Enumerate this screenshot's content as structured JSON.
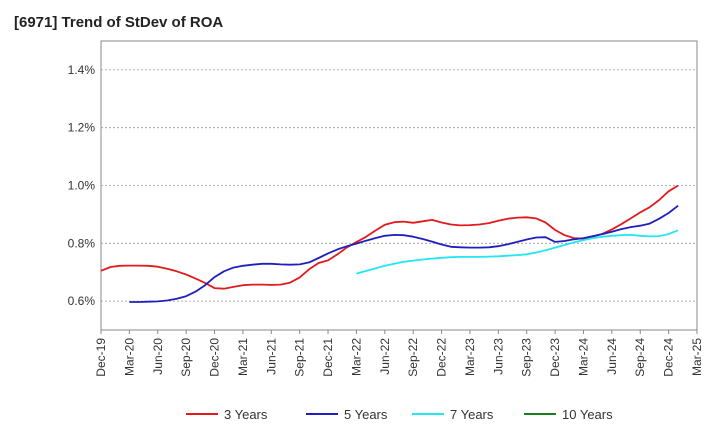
{
  "chart_data": {
    "type": "line",
    "title": "[6971]  Trend of StDev of ROA",
    "xlabel": "",
    "ylabel": "",
    "x_ticks": [
      "Dec-19",
      "Mar-20",
      "Jun-20",
      "Sep-20",
      "Dec-20",
      "Mar-21",
      "Jun-21",
      "Sep-21",
      "Dec-21",
      "Mar-22",
      "Jun-22",
      "Sep-22",
      "Dec-22",
      "Mar-23",
      "Jun-23",
      "Sep-23",
      "Dec-23",
      "Mar-24",
      "Jun-24",
      "Sep-24",
      "Dec-24",
      "Mar-25"
    ],
    "y_ticks": [
      "0.6%",
      "0.8%",
      "1.0%",
      "1.2%",
      "1.4%"
    ],
    "y_tick_values": [
      0.6,
      0.8,
      1.0,
      1.2,
      1.4
    ],
    "ylim": [
      0.5,
      1.5
    ],
    "grid": true,
    "legend_position": "bottom",
    "series": [
      {
        "name": "3 Years",
        "color": "#e31a1c",
        "values": [
          [
            "Dec-19",
            0.705
          ],
          [
            "Jan-20",
            0.718
          ],
          [
            "Feb-20",
            0.722
          ],
          [
            "Mar-20",
            0.723
          ],
          [
            "Apr-20",
            0.723
          ],
          [
            "May-20",
            0.722
          ],
          [
            "Jun-20",
            0.719
          ],
          [
            "Jul-20",
            0.712
          ],
          [
            "Aug-20",
            0.703
          ],
          [
            "Sep-20",
            0.692
          ],
          [
            "Oct-20",
            0.678
          ],
          [
            "Nov-20",
            0.663
          ],
          [
            "Dec-20",
            0.645
          ],
          [
            "Jan-21",
            0.643
          ],
          [
            "Feb-21",
            0.649
          ],
          [
            "Mar-21",
            0.655
          ],
          [
            "Apr-21",
            0.657
          ],
          [
            "May-21",
            0.657
          ],
          [
            "Jun-21",
            0.656
          ],
          [
            "Jul-21",
            0.657
          ],
          [
            "Aug-21",
            0.664
          ],
          [
            "Sep-21",
            0.682
          ],
          [
            "Oct-21",
            0.71
          ],
          [
            "Nov-21",
            0.732
          ],
          [
            "Dec-21",
            0.741
          ],
          [
            "Jan-22",
            0.762
          ],
          [
            "Feb-22",
            0.786
          ],
          [
            "Mar-22",
            0.804
          ],
          [
            "Apr-22",
            0.822
          ],
          [
            "May-22",
            0.844
          ],
          [
            "Jun-22",
            0.864
          ],
          [
            "Jul-22",
            0.873
          ],
          [
            "Aug-22",
            0.875
          ],
          [
            "Sep-22",
            0.871
          ],
          [
            "Oct-22",
            0.876
          ],
          [
            "Nov-22",
            0.881
          ],
          [
            "Dec-22",
            0.872
          ],
          [
            "Jan-23",
            0.865
          ],
          [
            "Feb-23",
            0.862
          ],
          [
            "Mar-23",
            0.863
          ],
          [
            "Apr-23",
            0.865
          ],
          [
            "May-23",
            0.87
          ],
          [
            "Jun-23",
            0.878
          ],
          [
            "Jul-23",
            0.885
          ],
          [
            "Aug-23",
            0.889
          ],
          [
            "Sep-23",
            0.89
          ],
          [
            "Oct-23",
            0.886
          ],
          [
            "Nov-23",
            0.872
          ],
          [
            "Dec-23",
            0.846
          ],
          [
            "Jan-24",
            0.828
          ],
          [
            "Feb-24",
            0.818
          ],
          [
            "Mar-24",
            0.816
          ],
          [
            "Apr-24",
            0.823
          ],
          [
            "May-24",
            0.833
          ],
          [
            "Jun-24",
            0.848
          ],
          [
            "Jul-24",
            0.866
          ],
          [
            "Aug-24",
            0.886
          ],
          [
            "Sep-24",
            0.907
          ],
          [
            "Oct-24",
            0.925
          ],
          [
            "Nov-24",
            0.95
          ],
          [
            "Dec-24",
            0.98
          ],
          [
            "Jan-25",
            1.0
          ]
        ]
      },
      {
        "name": "5 Years",
        "color": "#1f1fbf",
        "values": [
          [
            "Mar-20",
            0.597
          ],
          [
            "Apr-20",
            0.597
          ],
          [
            "May-20",
            0.598
          ],
          [
            "Jun-20",
            0.599
          ],
          [
            "Jul-20",
            0.602
          ],
          [
            "Aug-20",
            0.608
          ],
          [
            "Sep-20",
            0.617
          ],
          [
            "Oct-20",
            0.633
          ],
          [
            "Nov-20",
            0.655
          ],
          [
            "Dec-20",
            0.683
          ],
          [
            "Jan-21",
            0.703
          ],
          [
            "Feb-21",
            0.716
          ],
          [
            "Mar-21",
            0.722
          ],
          [
            "Apr-21",
            0.726
          ],
          [
            "May-21",
            0.729
          ],
          [
            "Jun-21",
            0.729
          ],
          [
            "Jul-21",
            0.727
          ],
          [
            "Aug-21",
            0.726
          ],
          [
            "Sep-21",
            0.727
          ],
          [
            "Oct-21",
            0.734
          ],
          [
            "Nov-21",
            0.749
          ],
          [
            "Dec-21",
            0.765
          ],
          [
            "Jan-22",
            0.779
          ],
          [
            "Feb-22",
            0.79
          ],
          [
            "Mar-22",
            0.799
          ],
          [
            "Apr-22",
            0.809
          ],
          [
            "May-22",
            0.818
          ],
          [
            "Jun-22",
            0.826
          ],
          [
            "Jul-22",
            0.829
          ],
          [
            "Aug-22",
            0.828
          ],
          [
            "Sep-22",
            0.823
          ],
          [
            "Oct-22",
            0.815
          ],
          [
            "Nov-22",
            0.806
          ],
          [
            "Dec-22",
            0.796
          ],
          [
            "Jan-23",
            0.788
          ],
          [
            "Feb-23",
            0.786
          ],
          [
            "Mar-23",
            0.785
          ],
          [
            "Apr-23",
            0.785
          ],
          [
            "May-23",
            0.786
          ],
          [
            "Jun-23",
            0.79
          ],
          [
            "Jul-23",
            0.797
          ],
          [
            "Aug-23",
            0.805
          ],
          [
            "Sep-23",
            0.813
          ],
          [
            "Oct-23",
            0.82
          ],
          [
            "Nov-23",
            0.821
          ],
          [
            "Dec-23",
            0.805
          ],
          [
            "Jan-24",
            0.808
          ],
          [
            "Feb-24",
            0.814
          ],
          [
            "Mar-24",
            0.818
          ],
          [
            "Apr-24",
            0.825
          ],
          [
            "May-24",
            0.832
          ],
          [
            "Jun-24",
            0.84
          ],
          [
            "Jul-24",
            0.849
          ],
          [
            "Aug-24",
            0.856
          ],
          [
            "Sep-24",
            0.861
          ],
          [
            "Oct-24",
            0.868
          ],
          [
            "Nov-24",
            0.885
          ],
          [
            "Dec-24",
            0.905
          ],
          [
            "Jan-25",
            0.93
          ]
        ]
      },
      {
        "name": "7 Years",
        "color": "#22e6f0",
        "values": [
          [
            "Mar-22",
            0.695
          ],
          [
            "Apr-22",
            0.704
          ],
          [
            "May-22",
            0.713
          ],
          [
            "Jun-22",
            0.722
          ],
          [
            "Jul-22",
            0.729
          ],
          [
            "Aug-22",
            0.736
          ],
          [
            "Sep-22",
            0.74
          ],
          [
            "Oct-22",
            0.744
          ],
          [
            "Nov-22",
            0.747
          ],
          [
            "Dec-22",
            0.75
          ],
          [
            "Jan-23",
            0.752
          ],
          [
            "Feb-23",
            0.753
          ],
          [
            "Mar-23",
            0.753
          ],
          [
            "Apr-23",
            0.753
          ],
          [
            "May-23",
            0.754
          ],
          [
            "Jun-23",
            0.755
          ],
          [
            "Jul-23",
            0.757
          ],
          [
            "Aug-23",
            0.759
          ],
          [
            "Sep-23",
            0.762
          ],
          [
            "Oct-23",
            0.768
          ],
          [
            "Nov-23",
            0.776
          ],
          [
            "Dec-23",
            0.785
          ],
          [
            "Jan-24",
            0.794
          ],
          [
            "Feb-24",
            0.803
          ],
          [
            "Mar-24",
            0.811
          ],
          [
            "Apr-24",
            0.818
          ],
          [
            "May-24",
            0.823
          ],
          [
            "Jun-24",
            0.826
          ],
          [
            "Jul-24",
            0.828
          ],
          [
            "Aug-24",
            0.829
          ],
          [
            "Sep-24",
            0.826
          ],
          [
            "Oct-24",
            0.824
          ],
          [
            "Nov-24",
            0.825
          ],
          [
            "Dec-24",
            0.832
          ],
          [
            "Jan-25",
            0.845
          ]
        ]
      },
      {
        "name": "10 Years",
        "color": "#1a7f1a",
        "values": []
      }
    ]
  }
}
